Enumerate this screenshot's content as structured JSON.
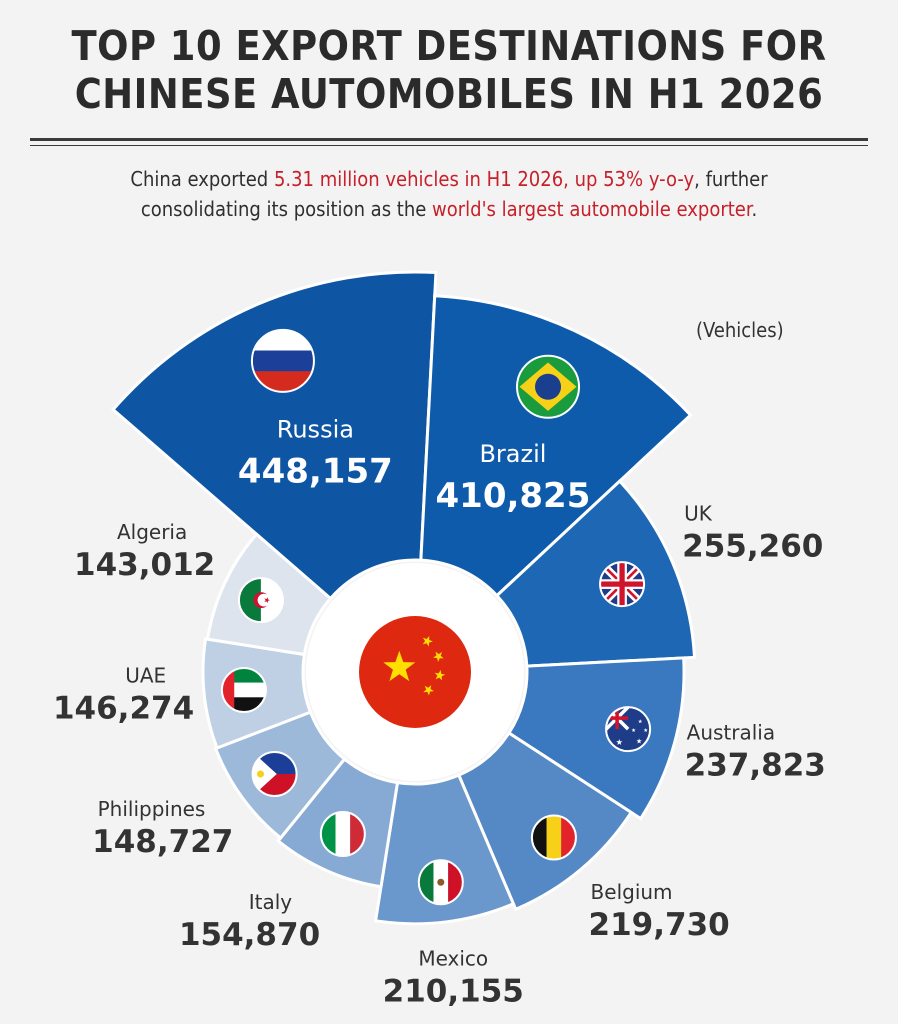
{
  "header": {
    "title_line1": "TOP 10 EXPORT DESTINATIONS FOR",
    "title_line2": "CHINESE AUTOMOBILES IN H1 2026",
    "subtitle_line1_a": "China exported ",
    "subtitle_line1_b": "5.31 million vehicles in H1 2026, up 53% y-o-y",
    "subtitle_line1_c": ", further",
    "subtitle_line2_a": "consolidating its position as the ",
    "subtitle_line2_b": "world's largest automobile exporter",
    "subtitle_line2_c": ".",
    "unit_label": "(Vehicles)"
  },
  "colors": {
    "highlight": "#c7202a",
    "background": "#f3f3f3",
    "shade_top": "#0e56a4",
    "shade_mid": "#3f7cc0",
    "shade_light": "#dde4ee"
  },
  "chart_data": {
    "type": "polar-bar",
    "title": "TOP 10 EXPORT DESTINATIONS FOR CHINESE AUTOMOBILES IN H1 2026",
    "unit": "Vehicles",
    "center_icon": "china-flag-icon",
    "categories": [
      "Russia",
      "Brazil",
      "UK",
      "Australia",
      "Belgium",
      "Mexico",
      "Italy",
      "Philippines",
      "UAE",
      "Algeria"
    ],
    "values": [
      448157,
      410825,
      255260,
      237823,
      219730,
      210155,
      154870,
      148727,
      146274,
      143012
    ],
    "value_labels": [
      "448,157",
      "410,825",
      "255,260",
      "237,823",
      "219,730",
      "210,155",
      "154,870",
      "148,727",
      "146,274",
      "143,012"
    ],
    "flag_icons": [
      "russia-flag-icon",
      "brazil-flag-icon",
      "uk-flag-icon",
      "australia-flag-icon",
      "belgium-flag-icon",
      "mexico-flag-icon",
      "italy-flag-icon",
      "philippines-flag-icon",
      "uae-flag-icon",
      "algeria-flag-icon"
    ],
    "slice_colors": [
      "#0e56a4",
      "#0f5bab",
      "#1e67b4",
      "#3a78bf",
      "#5589c6",
      "#6b98cc",
      "#87aad4",
      "#9db9da",
      "#c0d0e4",
      "#dde4ee"
    ],
    "label_placement": [
      "inside",
      "inside",
      "outside",
      "outside",
      "outside",
      "outside",
      "outside",
      "outside",
      "outside",
      "outside"
    ]
  }
}
